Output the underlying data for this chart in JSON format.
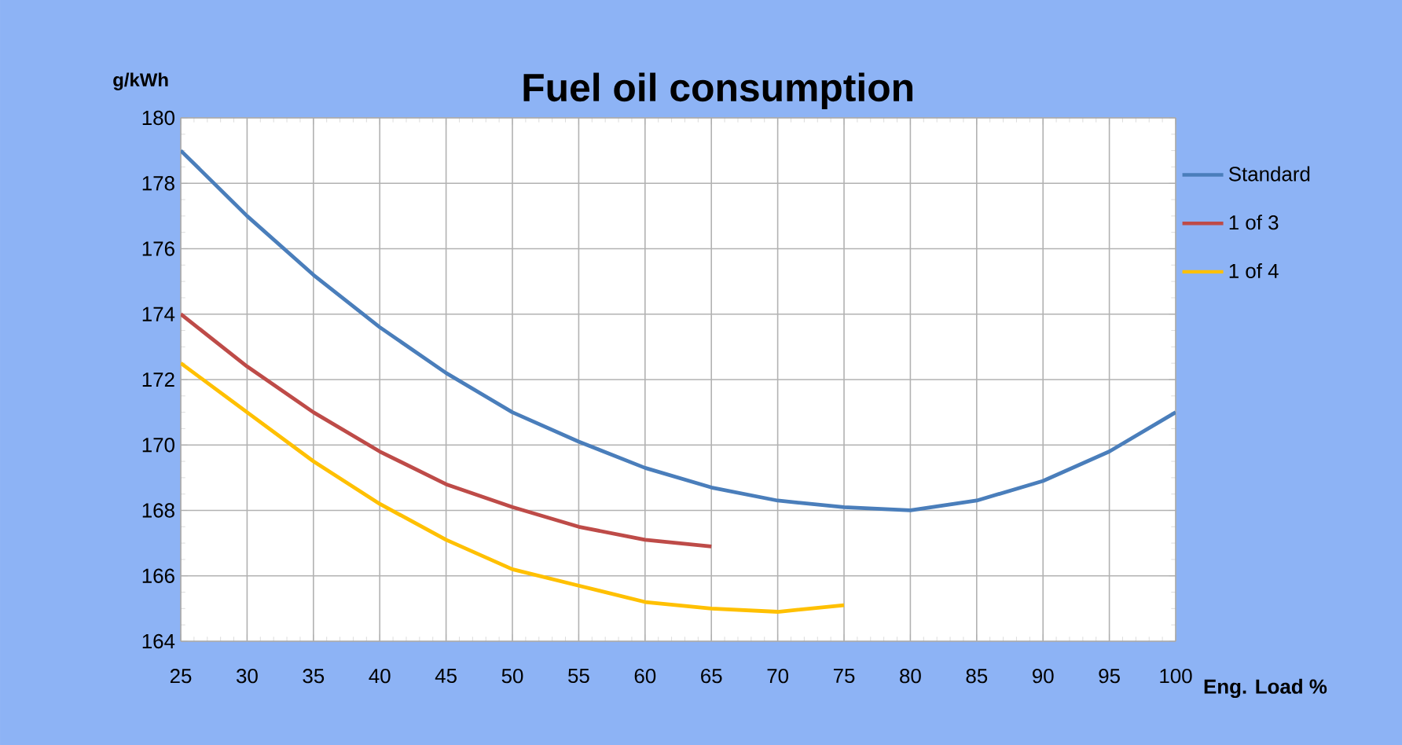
{
  "chart_data": {
    "type": "line",
    "title": "Fuel oil consumption",
    "xlabel": "Eng. Load %",
    "ylabel": "g/kWh",
    "xlim": [
      25,
      100
    ],
    "ylim": [
      164,
      180
    ],
    "xticks": [
      25,
      30,
      35,
      40,
      45,
      50,
      55,
      60,
      65,
      70,
      75,
      80,
      85,
      90,
      95,
      100
    ],
    "yticks": [
      164,
      166,
      168,
      170,
      172,
      174,
      176,
      178,
      180
    ],
    "grid": true,
    "legend": "right",
    "marker": "none",
    "line_style": "solid",
    "series": [
      {
        "name": "Standard",
        "color": "#4a7ebb",
        "x": [
          25,
          30,
          35,
          40,
          45,
          50,
          55,
          60,
          65,
          70,
          75,
          80,
          85,
          90,
          95,
          100
        ],
        "values": [
          179,
          177,
          175.2,
          173.6,
          172.2,
          171,
          170.1,
          169.3,
          168.7,
          168.3,
          168.1,
          168,
          168.3,
          168.9,
          169.8,
          171
        ]
      },
      {
        "name": "1 of 3",
        "color": "#be4b48",
        "x": [
          25,
          30,
          35,
          40,
          45,
          50,
          55,
          60,
          65
        ],
        "values": [
          174,
          172.4,
          171,
          169.8,
          168.8,
          168.1,
          167.5,
          167.1,
          166.9
        ]
      },
      {
        "name": "1 of 4",
        "color": "#ffc000",
        "x": [
          25,
          30,
          35,
          40,
          45,
          50,
          55,
          60,
          65,
          70,
          75
        ],
        "values": [
          172.5,
          171,
          169.5,
          168.2,
          167.1,
          166.2,
          165.7,
          165.2,
          165,
          164.9,
          165.1
        ]
      }
    ]
  }
}
